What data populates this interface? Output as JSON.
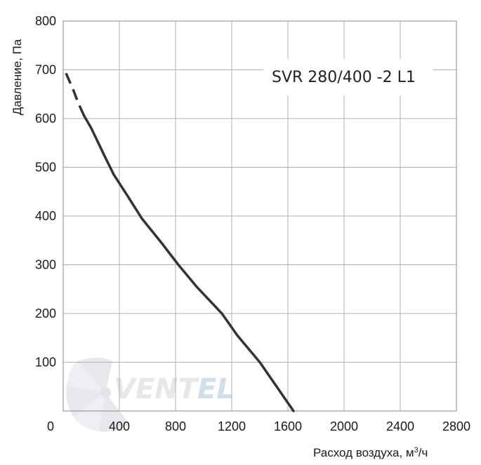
{
  "chart_data": {
    "type": "line",
    "title": "",
    "model_label": "SVR 280/400 -2 L1",
    "xlabel_main": "Расход воздуха, м",
    "xlabel_sup": "3",
    "xlabel_tail": "/ч",
    "ylabel": "Давление, Па",
    "xlim": [
      0,
      2800
    ],
    "ylim": [
      0,
      800
    ],
    "x_ticks": [
      0,
      400,
      800,
      1200,
      1600,
      2000,
      2400,
      2800
    ],
    "y_ticks": [
      100,
      200,
      300,
      400,
      500,
      600,
      700,
      800
    ],
    "x_tick_labels": [
      "0",
      "400",
      "800",
      "1200",
      "1600",
      "2000",
      "2400",
      "2800"
    ],
    "y_tick_labels": [
      "100",
      "200",
      "300",
      "400",
      "500",
      "600",
      "700",
      "800"
    ],
    "grid": true,
    "series": [
      {
        "color": "#333333",
        "dashed_x": [
          20,
          70,
          110,
          150
        ],
        "dashed_y": [
          693,
          660,
          630,
          605
        ],
        "x": [
          150,
          200,
          300,
          360,
          450,
          560,
          700,
          820,
          950,
          1130,
          1240,
          1400,
          1520,
          1640
        ],
        "y": [
          605,
          580,
          520,
          485,
          445,
          395,
          345,
          300,
          255,
          200,
          155,
          100,
          50,
          0
        ]
      }
    ]
  },
  "watermark": {
    "text_main": "VENT",
    "text_accent": "EL",
    "color_main": "#d4d8dc",
    "color_accent": "#b5c9dd"
  }
}
